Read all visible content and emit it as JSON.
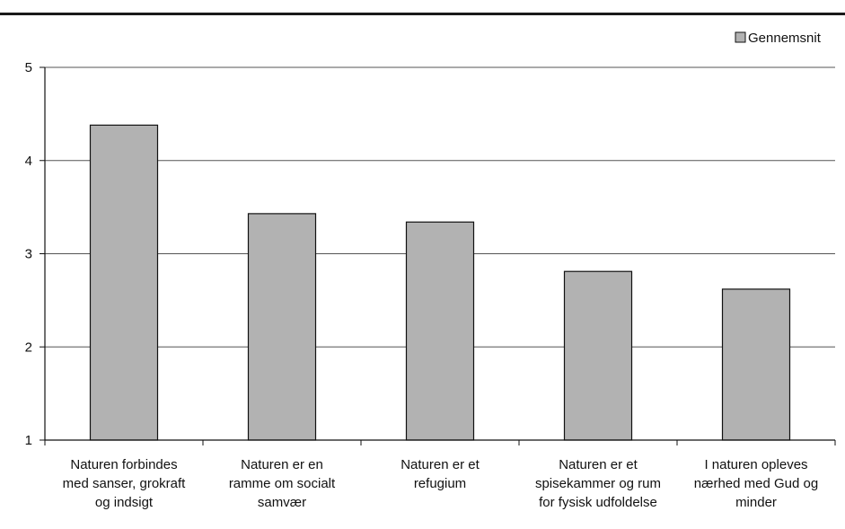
{
  "chart_data": {
    "type": "bar",
    "title": "",
    "xlabel": "",
    "ylabel": "",
    "ylim": [
      1,
      5
    ],
    "yticks": [
      1,
      2,
      3,
      4,
      5
    ],
    "grid": true,
    "legend_position": "top-right",
    "categories": [
      [
        "Naturen forbindes",
        "med sanser, grokraft",
        "og indsigt"
      ],
      [
        "Naturen er en",
        "ramme om socialt",
        "samvær"
      ],
      [
        "Naturen er et",
        "refugium"
      ],
      [
        "Naturen er et",
        "spisekammer og rum",
        "for fysisk udfoldelse"
      ],
      [
        "I naturen opleves",
        "nærhed med Gud og",
        "minder"
      ]
    ],
    "series": [
      {
        "name": "Gennemsnit",
        "color": "#b2b2b2",
        "values": [
          4.38,
          3.43,
          3.34,
          2.81,
          2.62
        ]
      }
    ]
  }
}
